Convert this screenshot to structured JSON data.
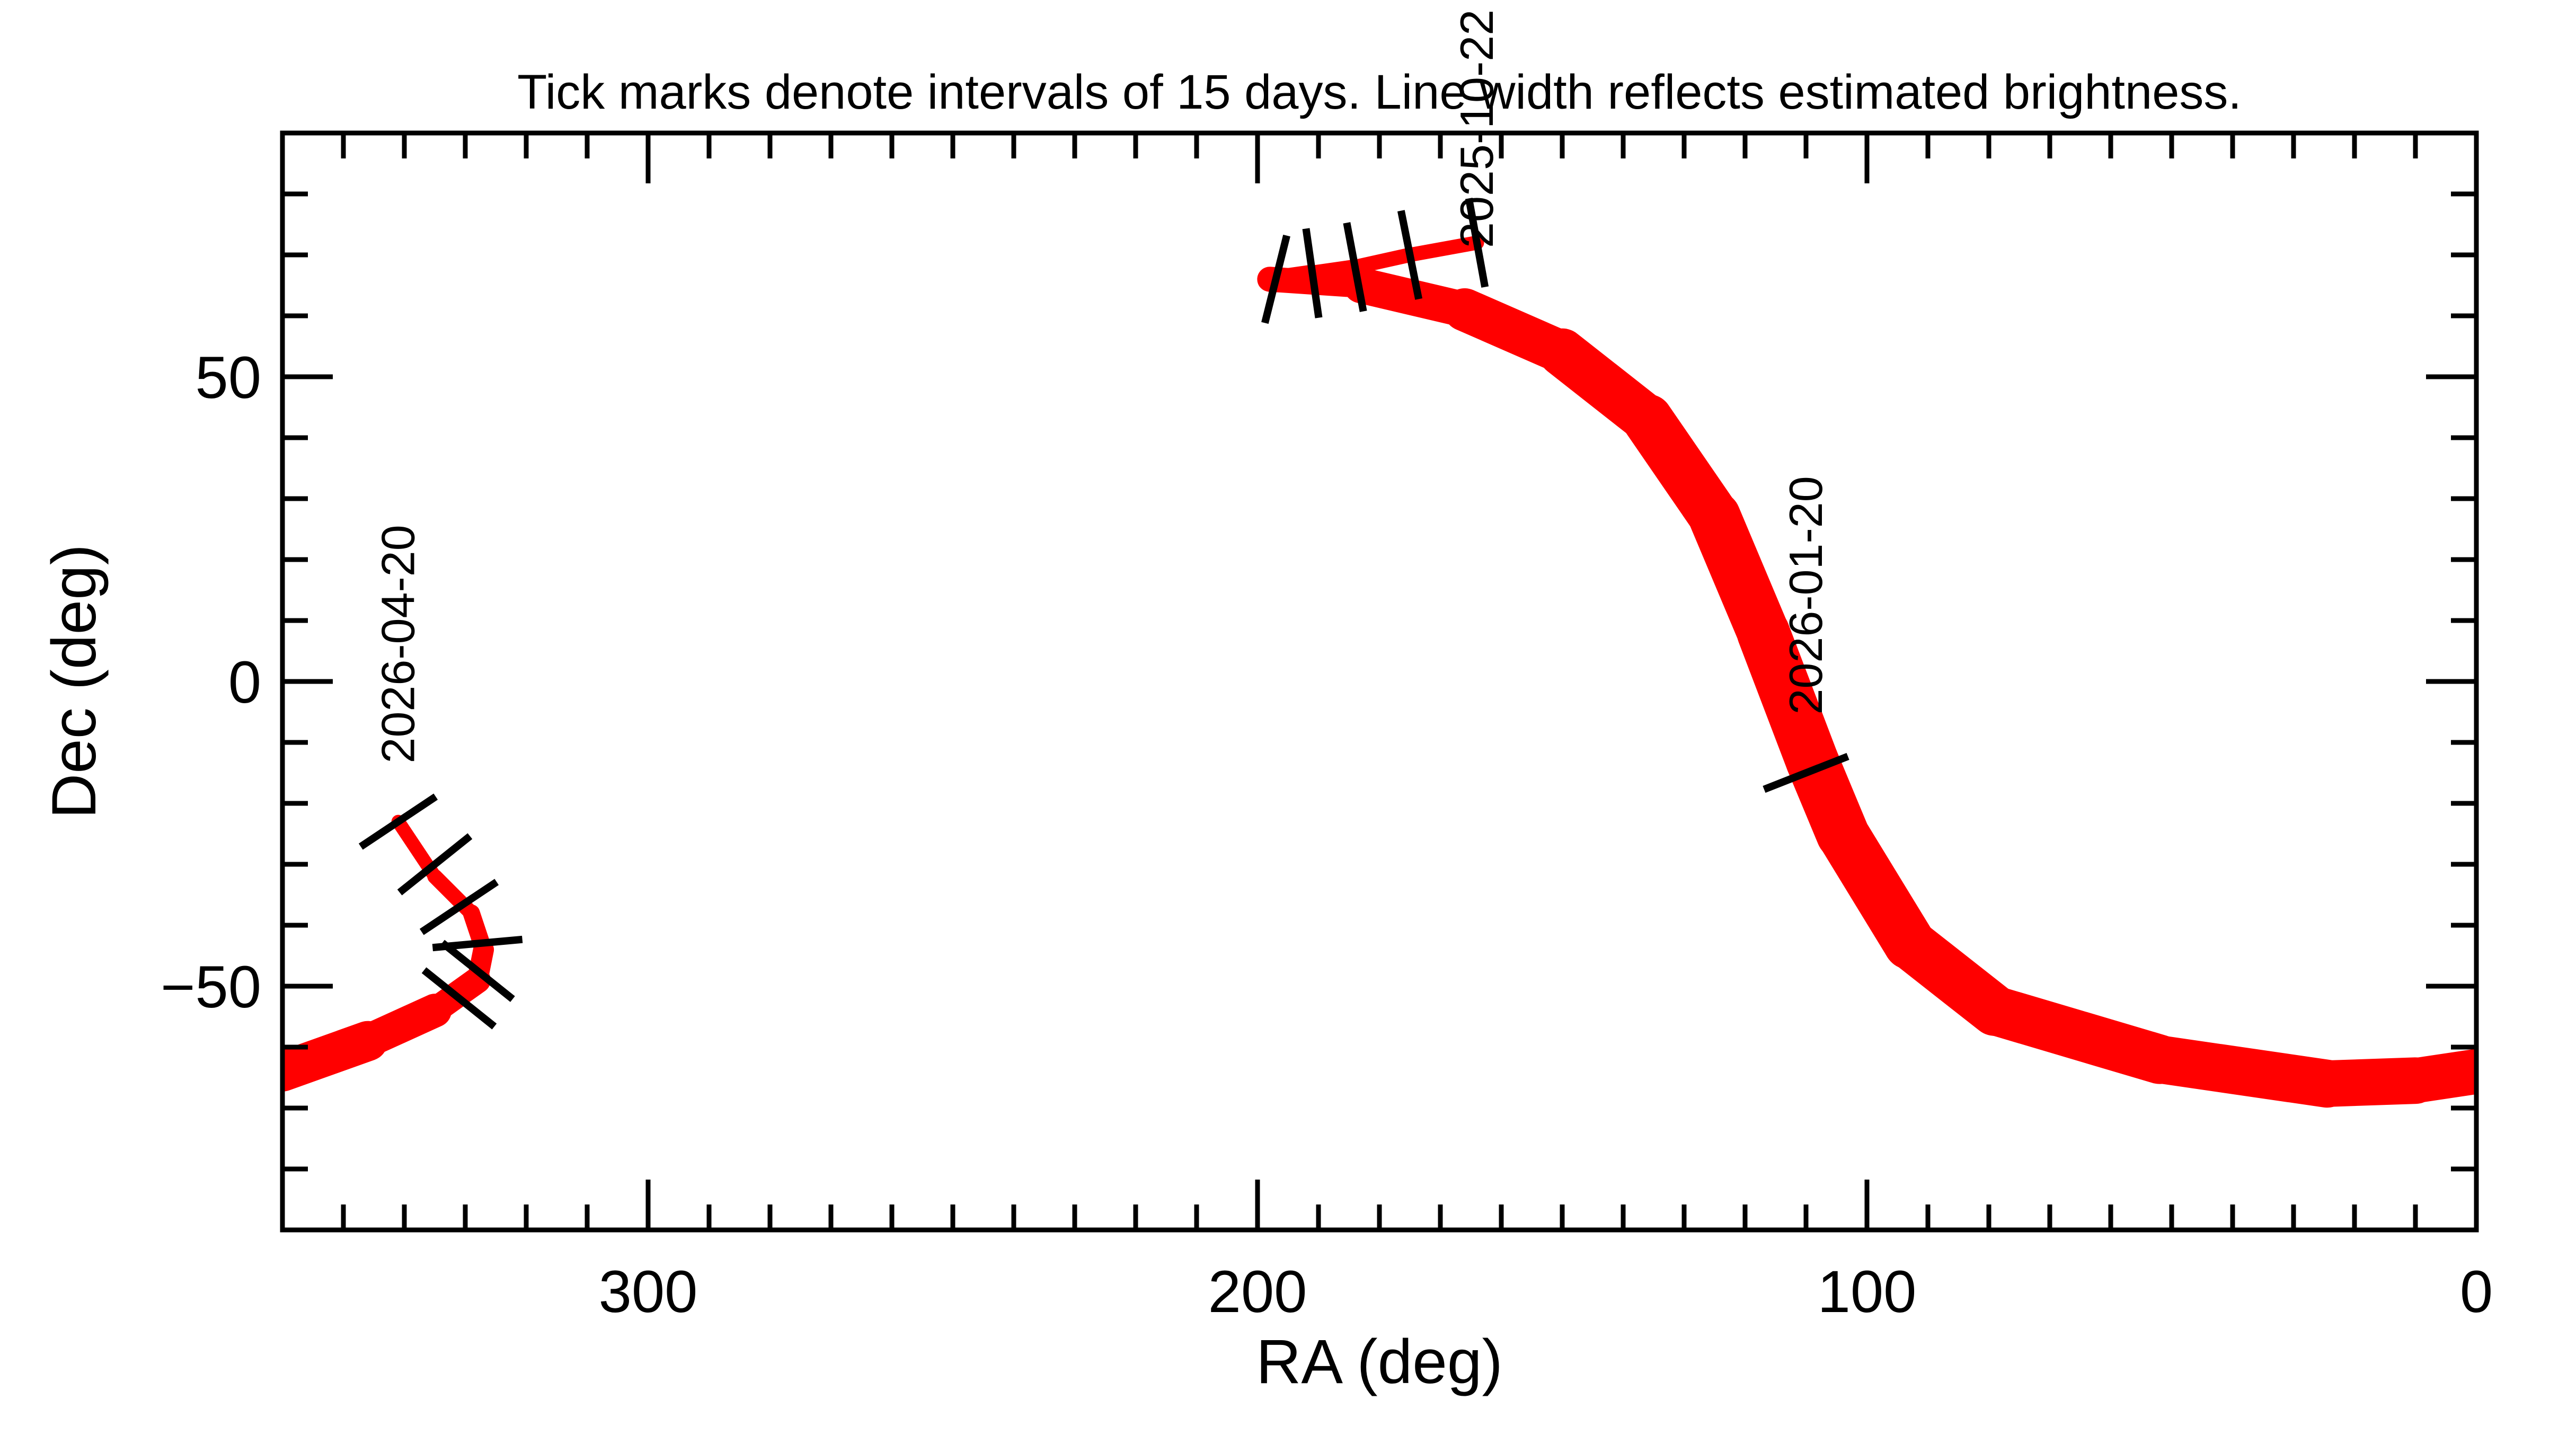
{
  "chart_data": {
    "type": "line",
    "title": "Tick marks denote intervals of 15 days.  Line width reflects estimated brightness.",
    "xlabel": "RA (deg)",
    "ylabel": "Dec (deg)",
    "xlim": [
      360,
      0
    ],
    "ylim": [
      -90,
      90
    ],
    "x_ticks": [
      300,
      200,
      100,
      0
    ],
    "x_tick_labels": [
      "300",
      "200",
      "100",
      "0"
    ],
    "y_ticks": [
      50,
      0,
      -50
    ],
    "y_tick_labels": [
      "50",
      "0",
      "−50"
    ],
    "x_minor_step": 10,
    "y_minor_step": 10,
    "grid": false,
    "colors": {
      "track": "#ff0000",
      "ticks": "#000000",
      "axes": "#000000"
    },
    "series": [
      {
        "ra": [
          164,
          175,
          184,
          191,
          198,
          183,
          166,
          150,
          136,
          125,
          117,
          109,
          104,
          93,
          79,
          52,
          24.5,
          10,
          0
        ],
        "dec": [
          72,
          70,
          68,
          67,
          66,
          65,
          61,
          54,
          43,
          27,
          8,
          -13,
          -25,
          -43,
          -54,
          -62,
          -66,
          -65.5,
          -64
        ],
        "relative_brightness": [
          1,
          1,
          1.05,
          1.1,
          1.3,
          2.2,
          2.8,
          3.2,
          3.5,
          3.6,
          3.7,
          3.7,
          3.7,
          3.6,
          3.5,
          3.4,
          3.3,
          3.2,
          3.1
        ]
      },
      {
        "ra": [
          360,
          346,
          335,
          328,
          327,
          329,
          335,
          341
        ],
        "dec": [
          -64,
          -59,
          -54,
          -49,
          -44,
          -38,
          -32,
          -23
        ],
        "relative_brightness": [
          3.0,
          2.6,
          2.1,
          1.6,
          1.3,
          1.1,
          1.0,
          0.9
        ]
      }
    ],
    "tick_marks_15_days": [
      {
        "ra": 164,
        "dec": 72
      },
      {
        "ra": 175,
        "dec": 70
      },
      {
        "ra": 184,
        "dec": 68
      },
      {
        "ra": 191,
        "dec": 67
      },
      {
        "ra": 197,
        "dec": 66
      },
      {
        "ra": 110,
        "dec": -15
      },
      {
        "ra": 331,
        "dec": -52
      },
      {
        "ra": 328,
        "dec": -47.5
      },
      {
        "ra": 328,
        "dec": -43
      },
      {
        "ra": 331,
        "dec": -37
      },
      {
        "ra": 335,
        "dec": -30
      },
      {
        "ra": 341,
        "dec": -23
      }
    ],
    "date_labels": [
      {
        "text": "2025-10-22",
        "ra": 164,
        "dec": 72
      },
      {
        "text": "2026-01-20",
        "ra": 110,
        "dec": -15
      },
      {
        "text": "2026-04-20",
        "ra": 341,
        "dec": -23
      }
    ]
  }
}
